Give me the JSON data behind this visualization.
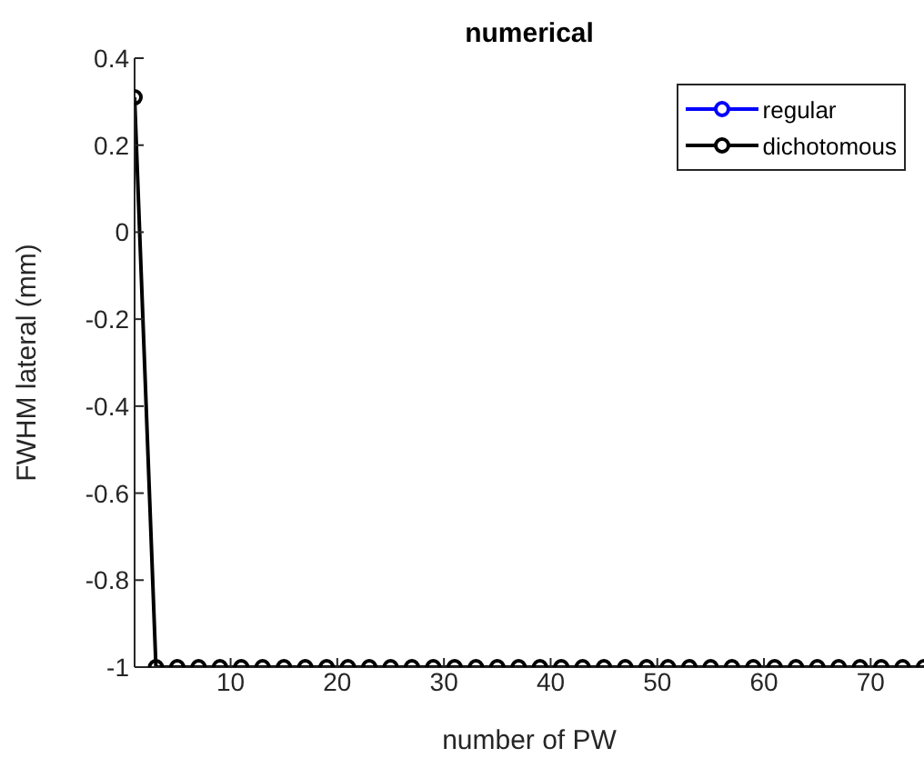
{
  "chart_data": {
    "type": "line",
    "title": "numerical",
    "xlabel": "number of PW",
    "ylabel": "FWHM lateral (mm)",
    "x": [
      1,
      3,
      5,
      7,
      9,
      11,
      13,
      15,
      17,
      19,
      21,
      23,
      25,
      27,
      29,
      31,
      33,
      35,
      37,
      39,
      41,
      43,
      45,
      47,
      49,
      51,
      53,
      55,
      57,
      59,
      61,
      63,
      65,
      67,
      69,
      71,
      73,
      75
    ],
    "series": [
      {
        "name": "regular",
        "color": "#0000ff",
        "values": [
          null,
          null,
          null,
          null,
          null,
          null,
          null,
          null,
          null,
          null,
          null,
          null,
          null,
          null,
          null,
          null,
          null,
          null,
          null,
          null,
          null,
          null,
          null,
          null,
          null,
          null,
          null,
          null,
          null,
          null,
          null,
          null,
          null,
          null,
          null,
          null,
          null,
          null
        ]
      },
      {
        "name": "dichotomous",
        "color": "#000000",
        "values": [
          0.31,
          -1,
          -1,
          -1,
          -1,
          -1,
          -1,
          -1,
          -1,
          -1,
          -1,
          -1,
          -1,
          -1,
          -1,
          -1,
          -1,
          -1,
          -1,
          -1,
          -1,
          -1,
          -1,
          -1,
          -1,
          -1,
          -1,
          -1,
          -1,
          -1,
          -1,
          -1,
          -1,
          -1,
          -1,
          -1,
          -1,
          -1
        ]
      }
    ],
    "xlim": [
      1,
      75
    ],
    "xticks": [
      10,
      20,
      30,
      40,
      50,
      60,
      70
    ],
    "ylim": [
      -1,
      0.4
    ],
    "yticks": [
      -1,
      -0.8,
      -0.6,
      -0.4,
      -0.2,
      0,
      0.2,
      0.4
    ],
    "marker": "circle",
    "line_style": "solid",
    "grid": false,
    "legend": "top right"
  }
}
